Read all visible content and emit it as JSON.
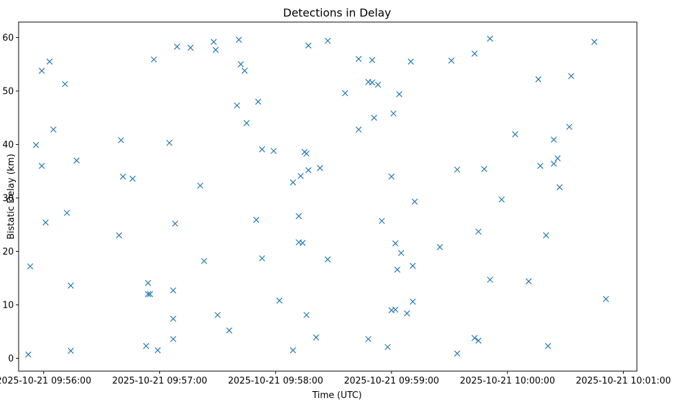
{
  "chart_data": {
    "type": "scatter",
    "title": "Detections in Delay",
    "xlabel": "Time (UTC)",
    "ylabel": "Bistatic Delay (km)",
    "marker": "x",
    "color": "#1f77b4",
    "grid": false,
    "x_format": "time",
    "x_ticks": [
      {
        "t": "09:56:00",
        "label": "2025-10-21 09:56:00"
      },
      {
        "t": "09:57:00",
        "label": "2025-10-21 09:57:00"
      },
      {
        "t": "09:58:00",
        "label": "2025-10-21 09:58:00"
      },
      {
        "t": "09:59:00",
        "label": "2025-10-21 09:59:00"
      },
      {
        "t": "10:00:00",
        "label": "2025-10-21 10:00:00"
      },
      {
        "t": "10:01:00",
        "label": "2025-10-21 10:01:00"
      }
    ],
    "y_ticks": [
      0,
      10,
      20,
      30,
      40,
      50,
      60
    ],
    "xlim": [
      "09:55:47",
      "10:01:07"
    ],
    "ylim": [
      -2.4,
      62.9
    ],
    "points": [
      [
        "09:55:52",
        0.7
      ],
      [
        "09:55:53",
        17.2
      ],
      [
        "09:55:56",
        39.9
      ],
      [
        "09:55:59",
        53.8
      ],
      [
        "09:55:59",
        36.0
      ],
      [
        "09:56:01",
        25.4
      ],
      [
        "09:56:03",
        55.5
      ],
      [
        "09:56:05",
        42.8
      ],
      [
        "09:56:11",
        51.3
      ],
      [
        "09:56:12",
        27.2
      ],
      [
        "09:56:14",
        13.6
      ],
      [
        "09:56:14",
        1.4
      ],
      [
        "09:56:17",
        37.0
      ],
      [
        "09:56:39",
        23.0
      ],
      [
        "09:56:40",
        40.8
      ],
      [
        "09:56:41",
        34.0
      ],
      [
        "09:56:46",
        33.6
      ],
      [
        "09:56:53",
        2.3
      ],
      [
        "09:56:54",
        14.1
      ],
      [
        "09:56:54",
        12.0
      ],
      [
        "09:56:55",
        12.0
      ],
      [
        "09:56:57",
        55.9
      ],
      [
        "09:56:59",
        1.5
      ],
      [
        "09:57:05",
        40.3
      ],
      [
        "09:57:07",
        3.6
      ],
      [
        "09:57:07",
        12.7
      ],
      [
        "09:57:07",
        7.4
      ],
      [
        "09:57:08",
        25.2
      ],
      [
        "09:57:09",
        58.3
      ],
      [
        "09:57:16",
        58.1
      ],
      [
        "09:57:21",
        32.3
      ],
      [
        "09:57:23",
        18.2
      ],
      [
        "09:57:28",
        59.2
      ],
      [
        "09:57:29",
        57.7
      ],
      [
        "09:57:30",
        8.1
      ],
      [
        "09:57:36",
        5.2
      ],
      [
        "09:57:40",
        47.3
      ],
      [
        "09:57:41",
        59.6
      ],
      [
        "09:57:42",
        55.0
      ],
      [
        "09:57:44",
        53.8
      ],
      [
        "09:57:45",
        44.0
      ],
      [
        "09:57:50",
        25.9
      ],
      [
        "09:57:51",
        48.0
      ],
      [
        "09:57:53",
        39.1
      ],
      [
        "09:57:53",
        18.7
      ],
      [
        "09:57:59",
        38.8
      ],
      [
        "09:58:02",
        10.8
      ],
      [
        "09:58:09",
        32.9
      ],
      [
        "09:58:09",
        1.5
      ],
      [
        "09:58:12",
        26.6
      ],
      [
        "09:58:12",
        21.7
      ],
      [
        "09:58:13",
        34.1
      ],
      [
        "09:58:14",
        21.6
      ],
      [
        "09:58:15",
        38.6
      ],
      [
        "09:58:16",
        38.3
      ],
      [
        "09:58:16",
        8.1
      ],
      [
        "09:58:17",
        58.5
      ],
      [
        "09:58:17",
        35.2
      ],
      [
        "09:58:21",
        3.9
      ],
      [
        "09:58:23",
        35.6
      ],
      [
        "09:58:27",
        59.4
      ],
      [
        "09:58:27",
        18.5
      ],
      [
        "09:58:36",
        49.6
      ],
      [
        "09:58:43",
        56.0
      ],
      [
        "09:58:43",
        42.8
      ],
      [
        "09:58:48",
        51.7
      ],
      [
        "09:58:48",
        3.6
      ],
      [
        "09:58:50",
        55.8
      ],
      [
        "09:58:50",
        51.6
      ],
      [
        "09:58:51",
        45.0
      ],
      [
        "09:58:53",
        51.2
      ],
      [
        "09:58:55",
        25.7
      ],
      [
        "09:58:58",
        2.1
      ],
      [
        "09:59:00",
        34.0
      ],
      [
        "09:59:00",
        9.0
      ],
      [
        "09:59:01",
        45.8
      ],
      [
        "09:59:02",
        9.1
      ],
      [
        "09:59:02",
        21.5
      ],
      [
        "09:59:03",
        16.6
      ],
      [
        "09:59:04",
        49.4
      ],
      [
        "09:59:05",
        19.7
      ],
      [
        "09:59:08",
        8.4
      ],
      [
        "09:59:10",
        55.5
      ],
      [
        "09:59:11",
        17.3
      ],
      [
        "09:59:11",
        10.6
      ],
      [
        "09:59:12",
        29.3
      ],
      [
        "09:59:25",
        20.8
      ],
      [
        "09:59:31",
        55.7
      ],
      [
        "09:59:34",
        35.3
      ],
      [
        "09:59:34",
        0.9
      ],
      [
        "09:59:43",
        57.0
      ],
      [
        "09:59:43",
        3.8
      ],
      [
        "09:59:45",
        23.7
      ],
      [
        "09:59:45",
        3.3
      ],
      [
        "09:59:48",
        35.4
      ],
      [
        "09:59:51",
        59.8
      ],
      [
        "09:59:51",
        14.7
      ],
      [
        "09:59:57",
        29.7
      ],
      [
        "10:00:04",
        41.9
      ],
      [
        "10:00:11",
        14.4
      ],
      [
        "10:00:16",
        52.2
      ],
      [
        "10:00:17",
        36.0
      ],
      [
        "10:00:20",
        23.0
      ],
      [
        "10:00:21",
        2.3
      ],
      [
        "10:00:24",
        36.4
      ],
      [
        "10:00:24",
        40.9
      ],
      [
        "10:00:26",
        37.4
      ],
      [
        "10:00:27",
        32.0
      ],
      [
        "10:00:32",
        43.3
      ],
      [
        "10:00:33",
        52.8
      ],
      [
        "10:00:45",
        59.2
      ],
      [
        "10:00:51",
        11.1
      ]
    ]
  }
}
